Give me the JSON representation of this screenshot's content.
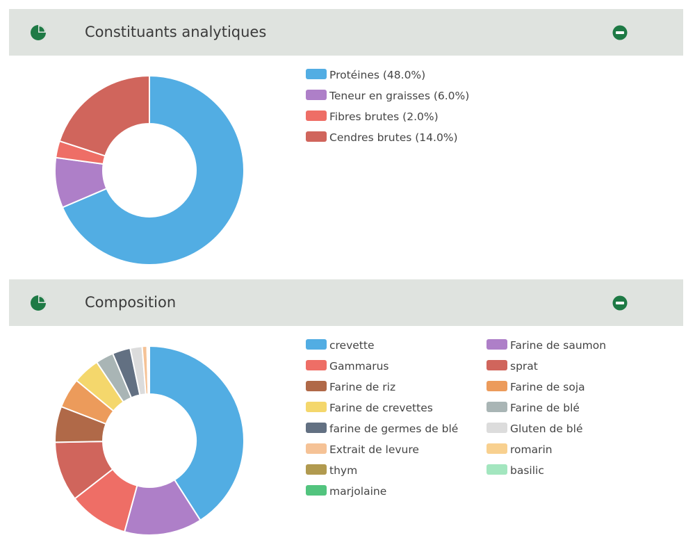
{
  "panels": {
    "analytics": {
      "title": "Constituants analytiques",
      "icon": "pie-chart-icon",
      "collapse_icon": "minus-circle-icon"
    },
    "composition": {
      "title": "Composition",
      "icon": "pie-chart-icon",
      "collapse_icon": "minus-circle-icon"
    }
  },
  "theme": {
    "icon_color": "#1e7a45",
    "header_bg": "#dfe3df"
  },
  "chart_data": [
    {
      "type": "pie",
      "variant": "donut",
      "legend_position": "right",
      "slices": [
        {
          "label": "Protéines (48.0%)",
          "value": 48.0,
          "color": "#52ade3"
        },
        {
          "label": "Teneur en graisses (6.0%)",
          "value": 6.0,
          "color": "#ae7fc8"
        },
        {
          "label": "Fibres brutes (2.0%)",
          "value": 2.0,
          "color": "#ee6e66"
        },
        {
          "label": "Cendres brutes (14.0%)",
          "value": 14.0,
          "color": "#d0655c"
        }
      ]
    },
    {
      "type": "pie",
      "variant": "donut",
      "legend_position": "right",
      "legend_columns": 2,
      "slices": [
        {
          "label": "crevette",
          "value": 40.0,
          "color": "#52ade3"
        },
        {
          "label": "Farine de saumon",
          "value": 13.0,
          "color": "#ae7fc8"
        },
        {
          "label": "Gammarus",
          "value": 10.0,
          "color": "#ee6e66"
        },
        {
          "label": "sprat",
          "value": 10.0,
          "color": "#d0655c"
        },
        {
          "label": "Farine de riz",
          "value": 6.0,
          "color": "#b06948"
        },
        {
          "label": "Farine de soja",
          "value": 5.0,
          "color": "#ec9b5b"
        },
        {
          "label": "Farine de crevettes",
          "value": 4.5,
          "color": "#f4d76c"
        },
        {
          "label": "Farine de blé",
          "value": 3.0,
          "color": "#a9b5b5"
        },
        {
          "label": "farine de germes de blé",
          "value": 3.0,
          "color": "#627082"
        },
        {
          "label": "Gluten de blé",
          "value": 2.0,
          "color": "#dcdcdc"
        },
        {
          "label": "Extrait de levure",
          "value": 0.8,
          "color": "#f5c296"
        },
        {
          "label": "romarin",
          "value": 0.1,
          "color": "#f8d08f"
        },
        {
          "label": "thym",
          "value": 0.1,
          "color": "#b19a4f"
        },
        {
          "label": "basilic",
          "value": 0.1,
          "color": "#a3e6bf"
        },
        {
          "label": "marjolaine",
          "value": 0.1,
          "color": "#52c47e"
        }
      ]
    }
  ]
}
